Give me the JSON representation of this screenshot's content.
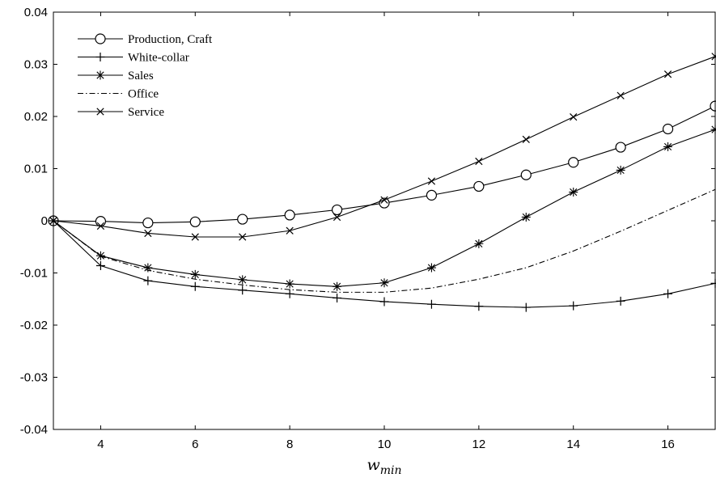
{
  "chart_data": {
    "type": "line",
    "title": "",
    "xlabel_main": "w",
    "xlabel_sub": "min",
    "ylabel": "",
    "xlim": [
      3,
      17
    ],
    "ylim": [
      -0.04,
      0.04
    ],
    "xticks": [
      4,
      6,
      8,
      10,
      12,
      14,
      16
    ],
    "xtick_labels": [
      "4",
      "6",
      "8",
      "10",
      "12",
      "14",
      "16"
    ],
    "yticks": [
      -0.04,
      -0.03,
      -0.02,
      -0.01,
      0,
      0.01,
      0.02,
      0.03,
      0.04
    ],
    "ytick_labels": [
      "-0.04",
      "-0.03",
      "-0.02",
      "-0.01",
      "0",
      "0.01",
      "0.02",
      "0.03",
      "0.04"
    ],
    "grid": false,
    "legend_position": "top-left",
    "x": [
      3,
      4,
      5,
      6,
      7,
      8,
      9,
      10,
      11,
      12,
      13,
      14,
      15,
      16,
      17
    ],
    "series": [
      {
        "name": "Production, Craft",
        "marker": "circle",
        "line": "solid",
        "values": [
          0,
          -0.0001,
          -0.0004,
          -0.0002,
          0.0003,
          0.0011,
          0.0021,
          0.0034,
          0.0049,
          0.0066,
          0.0088,
          0.0112,
          0.0141,
          0.0176,
          0.022
        ]
      },
      {
        "name": "White-collar",
        "marker": "plus",
        "line": "solid",
        "values": [
          0,
          -0.0086,
          -0.0115,
          -0.0126,
          -0.0133,
          -0.014,
          -0.0148,
          -0.0155,
          -0.016,
          -0.0164,
          -0.0166,
          -0.0163,
          -0.0154,
          -0.014,
          -0.012
        ]
      },
      {
        "name": "Sales",
        "marker": "asterisk",
        "line": "solid",
        "values": [
          0,
          -0.0067,
          -0.009,
          -0.0103,
          -0.0113,
          -0.0121,
          -0.0126,
          -0.0119,
          -0.009,
          -0.0044,
          0.0007,
          0.0055,
          0.0097,
          0.0142,
          0.0175
        ]
      },
      {
        "name": "Office",
        "marker": "none",
        "line": "dashdot",
        "values": [
          0,
          -0.0068,
          -0.0095,
          -0.0112,
          -0.0123,
          -0.0132,
          -0.0137,
          -0.0137,
          -0.0129,
          -0.0112,
          -0.009,
          -0.0058,
          -0.002,
          0.002,
          0.006
        ]
      },
      {
        "name": "Service",
        "marker": "x",
        "line": "solid",
        "values": [
          0,
          -0.001,
          -0.0024,
          -0.0031,
          -0.0031,
          -0.0019,
          0.0007,
          0.004,
          0.0076,
          0.0114,
          0.0156,
          0.0199,
          0.024,
          0.0281,
          0.0315
        ]
      }
    ]
  }
}
